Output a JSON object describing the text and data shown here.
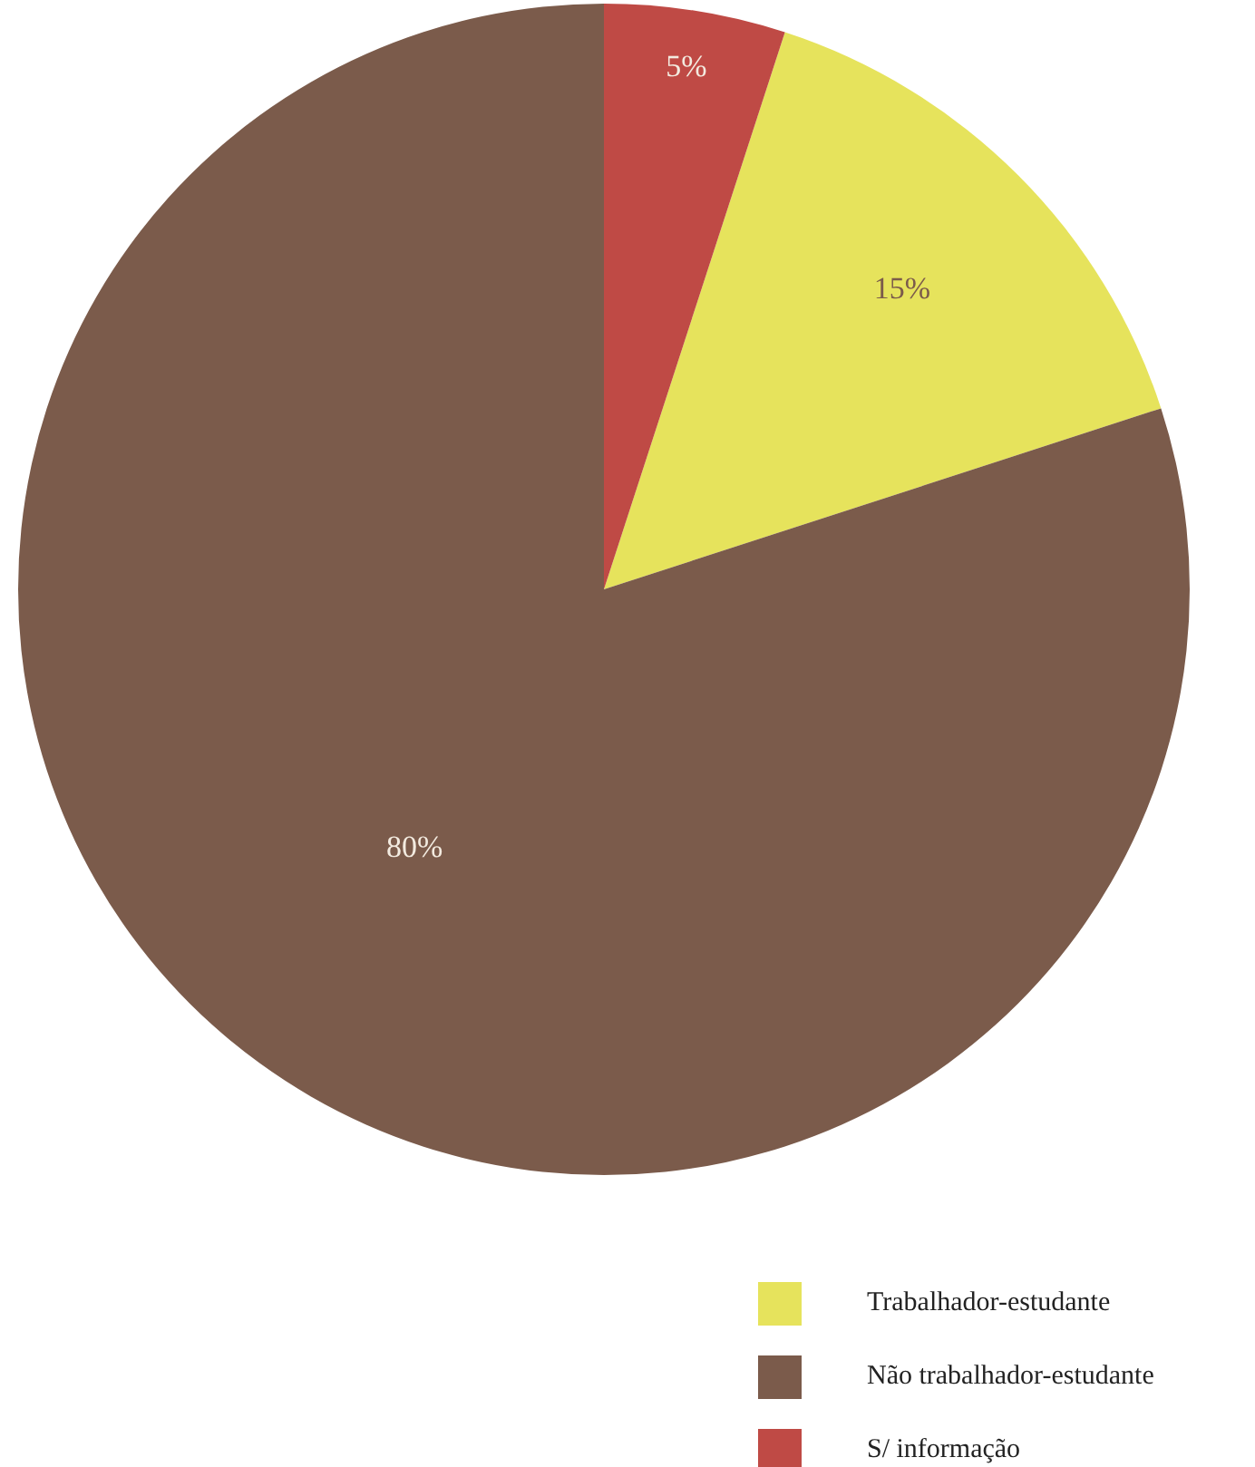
{
  "chart_data": {
    "type": "pie",
    "categories": [
      "Trabalhador-estudante",
      "Não trabalhador-estudante",
      "S/ informação"
    ],
    "values": [
      15,
      80,
      5
    ],
    "colors": [
      "#e6e35c",
      "#7b5b4b",
      "#bf4a45"
    ],
    "value_labels": [
      "15%",
      "80%",
      "5%"
    ],
    "legend": "bottom right"
  }
}
